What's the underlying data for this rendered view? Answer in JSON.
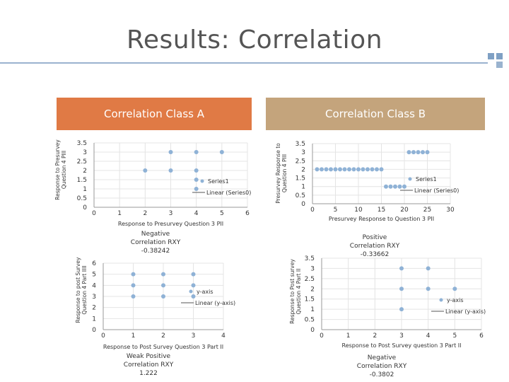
{
  "slide": {
    "title": "Results: Correlation",
    "accent_colors": [
      "#e07a45",
      "#c4a47c",
      "#9ab3cf"
    ],
    "header_a": "Correlation Class A",
    "header_b": "Correlation Class B"
  },
  "captions": {
    "c3": [
      "Negative",
      "Correlation RXY",
      "-0.38242"
    ],
    "c2": [
      "Positive",
      "Correlation RXY",
      "-0.33662"
    ],
    "c1": [
      "Weak Positive",
      "Correlation RXY",
      "1.222"
    ],
    "c4": [
      "Negative",
      "Correlation RXY",
      "-0.3802"
    ]
  },
  "chart_data": [
    {
      "type": "scatter",
      "title": "",
      "xlabel": "Response to Presurvey Question 3 PII",
      "ylabel": "Response to Presurvey Question 4 PIII",
      "xlim": [
        0,
        6
      ],
      "ylim": [
        0,
        3.5
      ],
      "xticks": [
        "0",
        "1",
        "2",
        "3",
        "4",
        "5",
        "6"
      ],
      "yticks": [
        "0",
        "0.5",
        "1",
        "1.5",
        "2",
        "2.5",
        "3",
        "3.5"
      ],
      "series": [
        {
          "name": "Series1",
          "points": [
            [
              2,
              2
            ],
            [
              3,
              2
            ],
            [
              3,
              3
            ],
            [
              4,
              3
            ],
            [
              4,
              2
            ],
            [
              4,
              1.5
            ],
            [
              4,
              1
            ],
            [
              5,
              3
            ]
          ]
        }
      ],
      "legend": [
        "Series1",
        "Linear (Series0)"
      ],
      "legend_position": "right"
    },
    {
      "type": "scatter",
      "title": "",
      "xlabel": "Presurvey Response to Question 3 PII",
      "ylabel": "Presurvey Response to Question 4 PIII",
      "xlim": [
        0,
        30
      ],
      "ylim": [
        0,
        3.5
      ],
      "xticks": [
        "0",
        "5",
        "10",
        "15",
        "20",
        "25",
        "30"
      ],
      "yticks": [
        "0",
        "0.5",
        "1",
        "1.5",
        "2",
        "2.5",
        "3",
        "3.5"
      ],
      "series": [
        {
          "name": "Series1",
          "points": [
            [
              1,
              2
            ],
            [
              2,
              2
            ],
            [
              3,
              2
            ],
            [
              4,
              2
            ],
            [
              5,
              2
            ],
            [
              6,
              2
            ],
            [
              7,
              2
            ],
            [
              8,
              2
            ],
            [
              9,
              2
            ],
            [
              10,
              2
            ],
            [
              11,
              2
            ],
            [
              12,
              2
            ],
            [
              13,
              2
            ],
            [
              14,
              2
            ],
            [
              15,
              2
            ],
            [
              16,
              1
            ],
            [
              17,
              1
            ],
            [
              18,
              1
            ],
            [
              19,
              1
            ],
            [
              20,
              1
            ],
            [
              21,
              3
            ],
            [
              22,
              3
            ],
            [
              23,
              3
            ],
            [
              24,
              3
            ],
            [
              25,
              3
            ]
          ]
        }
      ],
      "legend": [
        "Series1",
        "Linear (Series0)"
      ],
      "legend_position": "right"
    },
    {
      "type": "scatter",
      "title": "",
      "xlabel": "Response to Post Survey Question 3 Part II",
      "ylabel": "Response to post Survey Question 4 Part IIII",
      "xlim": [
        0,
        4
      ],
      "ylim": [
        0,
        6
      ],
      "xticks": [
        "0",
        "1",
        "2",
        "3",
        "4"
      ],
      "yticks": [
        "0",
        "1",
        "2",
        "3",
        "4",
        "5",
        "6"
      ],
      "series": [
        {
          "name": "y-axis",
          "points": [
            [
              1,
              5
            ],
            [
              1,
              4
            ],
            [
              1,
              3
            ],
            [
              2,
              5
            ],
            [
              2,
              4
            ],
            [
              2,
              3
            ],
            [
              3,
              5
            ],
            [
              3,
              4
            ],
            [
              3,
              3
            ]
          ]
        }
      ],
      "legend": [
        "y-axis",
        "Linear (y-axis)"
      ],
      "legend_position": "right"
    },
    {
      "type": "scatter",
      "title": "",
      "xlabel": "Response to Post Survey question 3 Part II",
      "ylabel": "Response to Post survey Question 4 Part II",
      "xlim": [
        0,
        6
      ],
      "ylim": [
        0,
        3.5
      ],
      "xticks": [
        "0",
        "1",
        "2",
        "3",
        "4",
        "5",
        "6"
      ],
      "yticks": [
        "0",
        "0.5",
        "1",
        "1.5",
        "2",
        "2.5",
        "3",
        "3.5"
      ],
      "series": [
        {
          "name": "y-axis",
          "points": [
            [
              3,
              3
            ],
            [
              3,
              2
            ],
            [
              3,
              1
            ],
            [
              4,
              3
            ],
            [
              4,
              2
            ],
            [
              5,
              2
            ]
          ]
        }
      ],
      "legend": [
        "y-axis",
        "Linear (y-axis)"
      ],
      "legend_position": "right"
    }
  ]
}
